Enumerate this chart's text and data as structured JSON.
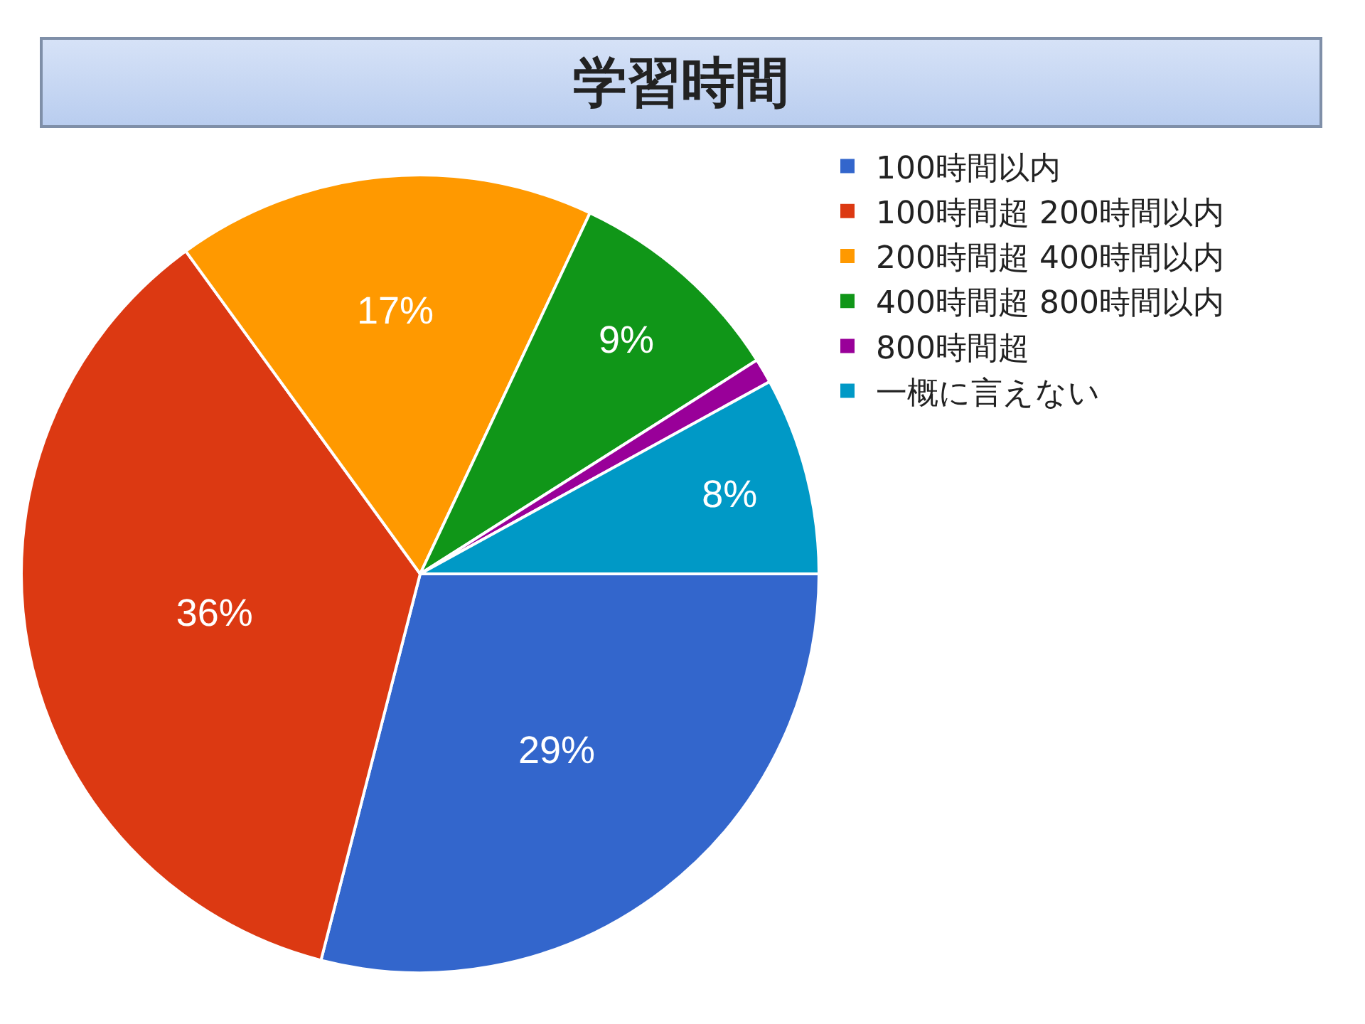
{
  "chart_data": {
    "type": "pie",
    "title": "学習時間",
    "categories": [
      "100時間以内",
      "100時間超 200時間以内",
      "200時間超 400時間以内",
      "400時間超 800時間以内",
      "800時間超",
      "一概に言えない"
    ],
    "values": [
      29,
      36,
      17,
      9,
      1,
      8
    ],
    "value_labels": [
      "29%",
      "36%",
      "17%",
      "9%",
      null,
      "8%"
    ],
    "colors": [
      "#3366cc",
      "#dc3912",
      "#ff9900",
      "#109618",
      "#990099",
      "#0099c6"
    ],
    "legend": "top right"
  }
}
